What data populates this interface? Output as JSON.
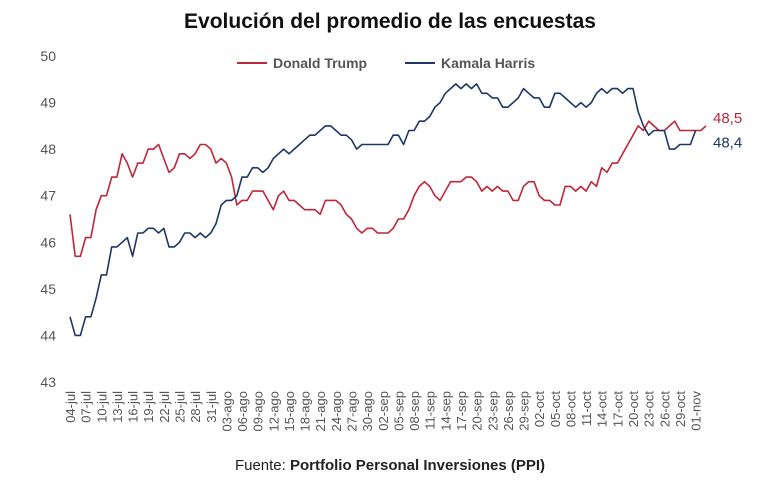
{
  "chart_data": {
    "type": "line",
    "title": "Evolución del promedio de las encuestas",
    "source_prefix": "Fuente:",
    "source_name": "Portfolio Personal Inversiones (PPI)",
    "legend_position": "top-center",
    "ylim": [
      43,
      50
    ],
    "yticks": [
      43,
      44,
      45,
      46,
      47,
      48,
      49,
      50
    ],
    "grid": false,
    "x_tick_labels": [
      "04-jul",
      "07-jul",
      "10-jul",
      "13-jul",
      "16-jul",
      "19-jul",
      "22-jul",
      "25-jul",
      "28-jul",
      "31-jul",
      "03-ago",
      "06-ago",
      "09-ago",
      "12-ago",
      "15-ago",
      "18-ago",
      "21-ago",
      "24-ago",
      "27-ago",
      "30-ago",
      "02-sep",
      "05-sep",
      "08-sep",
      "11-sep",
      "14-sep",
      "17-sep",
      "20-sep",
      "23-sep",
      "26-sep",
      "29-sep",
      "02-oct",
      "05-oct",
      "08-oct",
      "11-oct",
      "14-oct",
      "17-oct",
      "20-oct",
      "23-oct",
      "26-oct",
      "29-oct",
      "01-nov"
    ],
    "x_start_day": 0,
    "series": [
      {
        "name": "Donald Trump",
        "color": "#c0263a",
        "end_label": "48,5",
        "values": [
          46.6,
          45.7,
          45.7,
          46.1,
          46.1,
          46.7,
          47.0,
          47.0,
          47.4,
          47.4,
          47.9,
          47.7,
          47.4,
          47.7,
          47.7,
          48.0,
          48.0,
          48.1,
          47.8,
          47.5,
          47.6,
          47.9,
          47.9,
          47.8,
          47.9,
          48.1,
          48.1,
          48.0,
          47.7,
          47.8,
          47.7,
          47.4,
          46.8,
          46.9,
          46.9,
          47.1,
          47.1,
          47.1,
          46.9,
          46.7,
          47.0,
          47.1,
          46.9,
          46.9,
          46.8,
          46.7,
          46.7,
          46.7,
          46.6,
          46.9,
          46.9,
          46.9,
          46.8,
          46.6,
          46.5,
          46.3,
          46.2,
          46.3,
          46.3,
          46.2,
          46.2,
          46.2,
          46.3,
          46.5,
          46.5,
          46.7,
          47.0,
          47.2,
          47.3,
          47.2,
          47.0,
          46.9,
          47.1,
          47.3,
          47.3,
          47.3,
          47.4,
          47.4,
          47.3,
          47.1,
          47.2,
          47.1,
          47.2,
          47.1,
          47.1,
          46.9,
          46.9,
          47.2,
          47.3,
          47.3,
          47.0,
          46.9,
          46.9,
          46.8,
          46.8,
          47.2,
          47.2,
          47.1,
          47.2,
          47.1,
          47.3,
          47.2,
          47.6,
          47.5,
          47.7,
          47.7,
          47.9,
          48.1,
          48.3,
          48.5,
          48.4,
          48.6,
          48.5,
          48.4,
          48.4,
          48.5,
          48.6,
          48.4,
          48.4,
          48.4,
          48.4,
          48.4,
          48.5
        ]
      },
      {
        "name": "Kamala Harris",
        "color": "#1f3667",
        "end_label": "48,4",
        "values": [
          44.4,
          44.0,
          44.0,
          44.4,
          44.4,
          44.8,
          45.3,
          45.3,
          45.9,
          45.9,
          46.0,
          46.1,
          45.7,
          46.2,
          46.2,
          46.3,
          46.3,
          46.2,
          46.3,
          45.9,
          45.9,
          46.0,
          46.2,
          46.2,
          46.1,
          46.2,
          46.1,
          46.2,
          46.4,
          46.8,
          46.9,
          46.9,
          47.0,
          47.4,
          47.4,
          47.6,
          47.6,
          47.5,
          47.6,
          47.8,
          47.9,
          48.0,
          47.9,
          48.0,
          48.1,
          48.2,
          48.3,
          48.3,
          48.4,
          48.5,
          48.5,
          48.4,
          48.3,
          48.3,
          48.2,
          48.0,
          48.1,
          48.1,
          48.1,
          48.1,
          48.1,
          48.1,
          48.3,
          48.3,
          48.1,
          48.4,
          48.4,
          48.6,
          48.6,
          48.7,
          48.9,
          49.0,
          49.2,
          49.3,
          49.4,
          49.3,
          49.4,
          49.3,
          49.4,
          49.2,
          49.2,
          49.1,
          49.1,
          48.9,
          48.9,
          49.0,
          49.1,
          49.3,
          49.2,
          49.1,
          49.1,
          48.9,
          48.9,
          49.2,
          49.2,
          49.1,
          49.0,
          48.9,
          49.0,
          48.9,
          49.0,
          49.2,
          49.3,
          49.2,
          49.3,
          49.3,
          49.2,
          49.3,
          49.3,
          48.8,
          48.5,
          48.3,
          48.4,
          48.4,
          48.4,
          48.0,
          48.0,
          48.1,
          48.1,
          48.1,
          48.4
        ]
      }
    ]
  }
}
